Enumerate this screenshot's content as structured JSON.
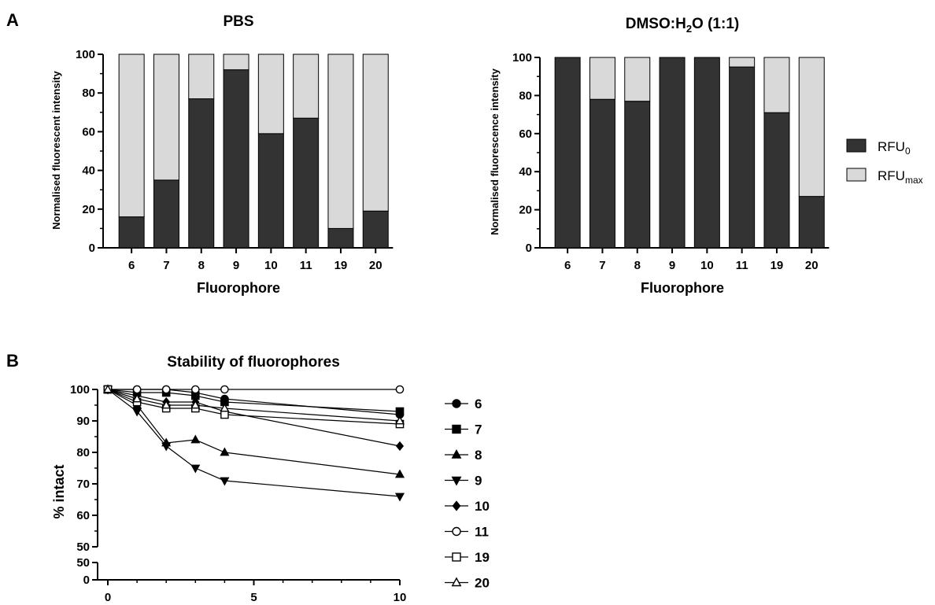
{
  "panel_labels": {
    "a": "A",
    "b": "B"
  },
  "colors": {
    "rfu0": "#333333",
    "rfumax": "#d9d9d9",
    "axis": "#000000"
  },
  "legend_top": [
    {
      "base": "RFU",
      "sub": "0",
      "color": "#333333"
    },
    {
      "base": "RFU",
      "sub": "max",
      "color": "#d9d9d9"
    }
  ],
  "chart_data": [
    {
      "type": "bar",
      "stacked": true,
      "title": "PBS",
      "xlabel": "Fluorophore",
      "ylabel": "Normalised fluorescent intensity",
      "ylim": [
        0,
        100
      ],
      "yticks": [
        0,
        20,
        40,
        60,
        80,
        100
      ],
      "categories": [
        "6",
        "7",
        "8",
        "9",
        "10",
        "11",
        "19",
        "20"
      ],
      "series": [
        {
          "name": "RFU0",
          "values": [
            16,
            35,
            77,
            92,
            59,
            67,
            10,
            19
          ]
        },
        {
          "name": "RFUmax",
          "values": [
            84,
            65,
            23,
            8,
            41,
            33,
            90,
            81
          ]
        }
      ]
    },
    {
      "type": "bar",
      "stacked": true,
      "title_parts": {
        "pre": "DMSO:H",
        "sub": "2",
        "post": "O (1:1)"
      },
      "xlabel": "Fluorophore",
      "ylabel": "Normalised fluorescence intensity",
      "ylim": [
        0,
        100
      ],
      "yticks": [
        0,
        20,
        40,
        60,
        80,
        100
      ],
      "categories": [
        "6",
        "7",
        "8",
        "9",
        "10",
        "11",
        "19",
        "20"
      ],
      "series": [
        {
          "name": "RFU0",
          "values": [
            100,
            78,
            77,
            100,
            100,
            95,
            71,
            27
          ]
        },
        {
          "name": "RFUmax",
          "values": [
            0,
            22,
            23,
            0,
            0,
            5,
            29,
            73
          ]
        }
      ]
    },
    {
      "type": "line",
      "title": "Stability of fluorophores",
      "ylabel": "% intact",
      "xlabel": "",
      "xlim": [
        0,
        10
      ],
      "xticks": [
        0,
        5,
        10
      ],
      "ylim_upper": [
        50,
        100
      ],
      "yticks_upper": [
        50,
        60,
        70,
        80,
        90,
        100
      ],
      "ylim_lower": [
        0,
        50
      ],
      "yticks_lower": [
        0,
        50
      ],
      "series": [
        {
          "name": "6",
          "marker": "circle-filled",
          "x": [
            0,
            1,
            2,
            3,
            4,
            10
          ],
          "y": [
            100,
            100,
            100,
            99,
            97,
            92
          ]
        },
        {
          "name": "7",
          "marker": "square-filled",
          "x": [
            0,
            1,
            2,
            3,
            4,
            10
          ],
          "y": [
            100,
            99,
            99,
            98,
            96,
            93
          ]
        },
        {
          "name": "8",
          "marker": "triangle-up-filled",
          "x": [
            0,
            1,
            2,
            3,
            4,
            10
          ],
          "y": [
            100,
            95,
            83,
            84,
            80,
            73
          ]
        },
        {
          "name": "9",
          "marker": "triangle-down-filled",
          "x": [
            0,
            1,
            2,
            3,
            4,
            10
          ],
          "y": [
            100,
            93,
            82,
            75,
            71,
            66
          ]
        },
        {
          "name": "10",
          "marker": "diamond-filled",
          "x": [
            0,
            1,
            2,
            3,
            4,
            10
          ],
          "y": [
            100,
            98,
            96,
            96,
            93,
            82
          ]
        },
        {
          "name": "11",
          "marker": "circle-open",
          "x": [
            0,
            1,
            2,
            3,
            4,
            10
          ],
          "y": [
            100,
            100,
            100,
            100,
            100,
            100
          ]
        },
        {
          "name": "19",
          "marker": "square-open",
          "x": [
            0,
            1,
            2,
            3,
            4,
            10
          ],
          "y": [
            100,
            96,
            94,
            94,
            92,
            89
          ]
        },
        {
          "name": "20",
          "marker": "triangle-up-open",
          "x": [
            0,
            1,
            2,
            3,
            4,
            10
          ],
          "y": [
            100,
            97,
            95,
            95,
            94,
            90
          ]
        }
      ]
    }
  ]
}
